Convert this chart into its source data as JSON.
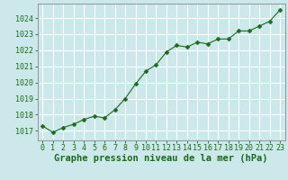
{
  "x": [
    0,
    1,
    2,
    3,
    4,
    5,
    6,
    7,
    8,
    9,
    10,
    11,
    12,
    13,
    14,
    15,
    16,
    17,
    18,
    19,
    20,
    21,
    22,
    23
  ],
  "y": [
    1017.3,
    1016.9,
    1017.2,
    1017.4,
    1017.7,
    1017.9,
    1017.8,
    1018.3,
    1019.0,
    1019.9,
    1020.7,
    1021.1,
    1021.9,
    1022.3,
    1022.2,
    1022.5,
    1022.4,
    1022.7,
    1022.7,
    1023.2,
    1023.2,
    1023.5,
    1023.8,
    1024.5
  ],
  "line_color": "#1a6b1a",
  "marker": "D",
  "marker_size": 2.5,
  "marker_color": "#1a6b1a",
  "bg_color": "#cce8eb",
  "grid_color": "#ffffff",
  "xlabel": "Graphe pression niveau de la mer (hPa)",
  "xlabel_color": "#1a6b1a",
  "xlabel_fontsize": 7.5,
  "tick_fontsize": 6.0,
  "ylim_min": 1016.4,
  "ylim_max": 1024.9,
  "yticks": [
    1017,
    1018,
    1019,
    1020,
    1021,
    1022,
    1023,
    1024
  ],
  "xticks": [
    0,
    1,
    2,
    3,
    4,
    5,
    6,
    7,
    8,
    9,
    10,
    11,
    12,
    13,
    14,
    15,
    16,
    17,
    18,
    19,
    20,
    21,
    22,
    23
  ],
  "tick_color": "#1a6b1a",
  "spine_color": "#888888"
}
